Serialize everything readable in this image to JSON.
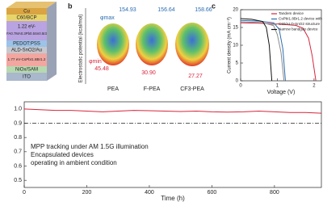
{
  "device_stack": {
    "layers": [
      "Cu",
      "C60/BCP",
      "1.22 eV-",
      "FA0.7MA0.3Pb0.5Sn0.5I3",
      "PEDOT:PSS",
      "ALD-SnO2/Au",
      "1.77 eV-CsPbI1.8Br1.2",
      "NiOx/SAM",
      "ITO"
    ]
  },
  "esp_panel": {
    "letter": "b",
    "ylabel": "Electrostatic potential (kcal/mol)",
    "molecules": [
      {
        "name": "PEA",
        "max": "154.93",
        "min": "45.48"
      },
      {
        "name": "F-PEA",
        "max": "156.64",
        "min": "30.90"
      },
      {
        "name": "CF3-PEA",
        "max": "158.66",
        "min": "27.27"
      }
    ],
    "max_symbol": "φmax",
    "min_symbol": "φmin"
  },
  "chart_data": [
    {
      "type": "line",
      "letter": "c",
      "xlabel": "Voltage (V)",
      "ylabel": "Current density (mA cm⁻²)",
      "xlim": [
        0,
        2.2
      ],
      "xticks": [
        0,
        1,
        2
      ],
      "ylim": [
        0,
        20
      ],
      "yticks": [
        0,
        5,
        10,
        15,
        20
      ],
      "legend": "upper right",
      "series": [
        {
          "name": "Tandem device",
          "color": "#d7263d",
          "x": [
            0,
            0.5,
            1,
            1.5,
            1.7,
            1.85,
            1.95,
            2.05
          ],
          "values": [
            16.3,
            16.2,
            16.0,
            15.6,
            14.8,
            12,
            7,
            0
          ]
        },
        {
          "name": "CsPbI1.8Br1.2 device with",
          "color": "#2b6cb0",
          "x": [
            0,
            0.5,
            0.9,
            1.05,
            1.15,
            1.22
          ],
          "values": [
            17,
            16.8,
            16.3,
            14.5,
            9,
            0
          ]
        },
        {
          "name": "C60/ALD-SnO2 structure",
          "color": "#8a8a8a",
          "x": [
            0,
            0.6,
            0.9,
            1.0,
            1.1,
            1.18
          ],
          "values": [
            16.6,
            16.4,
            15.5,
            13,
            8,
            0
          ]
        },
        {
          "name": "Narrow bandgap device",
          "color": "#111111",
          "x": [
            0,
            0.3,
            0.6,
            0.7,
            0.78,
            0.85
          ],
          "values": [
            17.5,
            17.3,
            16.7,
            15,
            10,
            0
          ]
        }
      ]
    },
    {
      "type": "line",
      "xlabel": "Time (h)",
      "xlim": [
        0,
        950
      ],
      "xticks": [
        0,
        200,
        400,
        600,
        800
      ],
      "ylim": [
        0.45,
        1.05
      ],
      "yticks": [
        {
          "value": 1,
          "label": "1.0"
        },
        0.9,
        0.8,
        0.7,
        0.6,
        0.5
      ],
      "hline": 0.9,
      "annotations": [
        "MPP tracking under AM 1.5G illumination",
        "Encapsulated devices",
        "operating in ambient condition"
      ],
      "series": [
        {
          "name": null,
          "color": "#d7263d",
          "x": [
            0,
            50,
            100,
            150,
            200,
            250,
            300,
            350,
            400,
            450,
            500,
            550,
            600,
            650,
            700,
            750,
            800,
            850,
            900,
            950
          ],
          "values": [
            1.0,
            0.995,
            0.99,
            0.99,
            0.985,
            0.98,
            0.985,
            0.99,
            0.988,
            0.985,
            0.982,
            0.985,
            0.98,
            0.978,
            0.98,
            0.985,
            0.98,
            0.975,
            0.975,
            0.97
          ]
        }
      ]
    }
  ]
}
